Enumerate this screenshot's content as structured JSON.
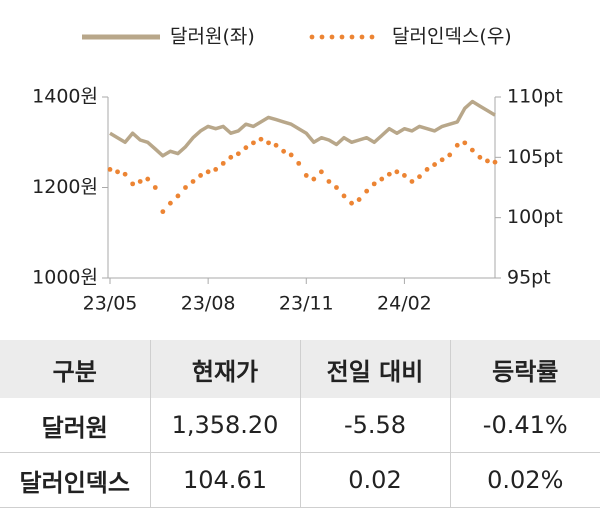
{
  "chart_data": {
    "type": "line",
    "legend": "top",
    "categories": [
      "23/05",
      null,
      null,
      null,
      null,
      null,
      null,
      null,
      null,
      null,
      null,
      null,
      null,
      "23/08",
      null,
      null,
      null,
      null,
      null,
      null,
      null,
      null,
      null,
      null,
      null,
      null,
      "23/11",
      null,
      null,
      null,
      null,
      null,
      null,
      null,
      null,
      null,
      null,
      null,
      null,
      "24/02",
      null,
      null,
      null,
      null,
      null,
      null,
      null,
      null,
      null,
      null,
      null,
      null
    ],
    "series": [
      {
        "name": "달러원(좌)",
        "color": "#b8a78a",
        "style": "line",
        "values": [
          1320,
          1310,
          1300,
          1320,
          1305,
          1300,
          1285,
          1270,
          1280,
          1275,
          1290,
          1310,
          1325,
          1335,
          1330,
          1335,
          1320,
          1325,
          1340,
          1335,
          1345,
          1355,
          1350,
          1345,
          1340,
          1330,
          1320,
          1300,
          1310,
          1305,
          1295,
          1310,
          1300,
          1305,
          1310,
          1300,
          1315,
          1330,
          1320,
          1330,
          1325,
          1335,
          1330,
          1325,
          1335,
          1340,
          1345,
          1375,
          1390,
          1380,
          1370,
          1360
        ]
      },
      {
        "name": "달러인덱스(우)",
        "color": "#ec8433",
        "style": "dots",
        "axis": "y2",
        "values": [
          104,
          103.8,
          103.6,
          102.8,
          103,
          103.2,
          102.5,
          100.5,
          101.2,
          101.8,
          102.5,
          103,
          103.5,
          103.8,
          104,
          104.5,
          105,
          105.3,
          105.8,
          106.2,
          106.5,
          106.2,
          106,
          105.5,
          105.2,
          104.5,
          103.5,
          103.2,
          103.8,
          103,
          102.5,
          101.8,
          101.2,
          101.5,
          102.2,
          102.8,
          103.2,
          103.6,
          103.8,
          103.5,
          103,
          103.4,
          104,
          104.4,
          104.8,
          105.2,
          106,
          106.2,
          105.6,
          105,
          104.7,
          104.6
        ]
      }
    ],
    "ylim": [
      1000,
      1400
    ],
    "yticks": [
      {
        "value": 1000,
        "label": "1000원"
      },
      {
        "value": 1200,
        "label": "1200원"
      },
      {
        "value": 1400,
        "label": "1400원"
      }
    ],
    "y2lim": [
      95,
      110
    ],
    "y2ticks": [
      {
        "value": 95,
        "label": "95pt"
      },
      {
        "value": 100,
        "label": "100pt"
      },
      {
        "value": 105,
        "label": "105pt"
      },
      {
        "value": 110,
        "label": "110pt"
      }
    ],
    "grid": false
  },
  "table": {
    "header": [
      "구분",
      "현재가",
      "전일 대비",
      "등락률"
    ],
    "rows": [
      [
        "달러원",
        "1,358.20",
        "-5.58",
        "-0.41%"
      ],
      [
        "달러인덱스",
        "104.61",
        "0.02",
        "0.02%"
      ]
    ]
  }
}
